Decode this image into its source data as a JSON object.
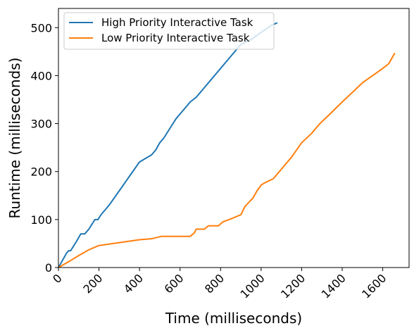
{
  "chart_data": {
    "type": "line",
    "xlabel": "Time (milliseconds)",
    "ylabel": "Runtime (milliseconds)",
    "xlim": [
      0,
      1730
    ],
    "ylim": [
      0,
      540
    ],
    "xticks": [
      0,
      200,
      400,
      600,
      800,
      1000,
      1200,
      1400,
      1600
    ],
    "yticks": [
      0,
      100,
      200,
      300,
      400,
      500
    ],
    "grid": false,
    "legend_position": "top-left",
    "series": [
      {
        "name": "High Priority Interactive Task",
        "color": "#1f77b4",
        "x": [
          0,
          20,
          40,
          50,
          60,
          75,
          90,
          110,
          130,
          150,
          165,
          180,
          195,
          210,
          250,
          300,
          350,
          400,
          440,
          460,
          480,
          500,
          520,
          550,
          580,
          600,
          620,
          650,
          680,
          700,
          720,
          750,
          780,
          800,
          820,
          850,
          880,
          900,
          950,
          1000,
          1050,
          1080
        ],
        "y": [
          0,
          15,
          30,
          35,
          35,
          45,
          55,
          70,
          70,
          80,
          90,
          100,
          100,
          110,
          130,
          160,
          190,
          220,
          230,
          235,
          245,
          260,
          270,
          290,
          310,
          320,
          330,
          345,
          355,
          365,
          375,
          390,
          405,
          415,
          425,
          440,
          455,
          465,
          475,
          490,
          505,
          510
        ]
      },
      {
        "name": "Low Priority Interactive Task",
        "color": "#ff7f0e",
        "x": [
          0,
          50,
          100,
          150,
          200,
          300,
          400,
          460,
          480,
          510,
          560,
          600,
          640,
          650,
          670,
          680,
          720,
          740,
          790,
          810,
          830,
          860,
          900,
          920,
          960,
          980,
          1000,
          1020,
          1060,
          1090,
          1110,
          1150,
          1200,
          1250,
          1290,
          1340,
          1400,
          1450,
          1500,
          1550,
          1600,
          1630,
          1650,
          1660
        ],
        "y": [
          0,
          12,
          25,
          37,
          46,
          52,
          58,
          60,
          62,
          65,
          65,
          65,
          65,
          65,
          72,
          80,
          80,
          87,
          87,
          95,
          98,
          103,
          110,
          127,
          145,
          160,
          172,
          177,
          185,
          200,
          210,
          230,
          260,
          280,
          300,
          320,
          345,
          365,
          385,
          400,
          415,
          425,
          440,
          447
        ]
      }
    ]
  }
}
